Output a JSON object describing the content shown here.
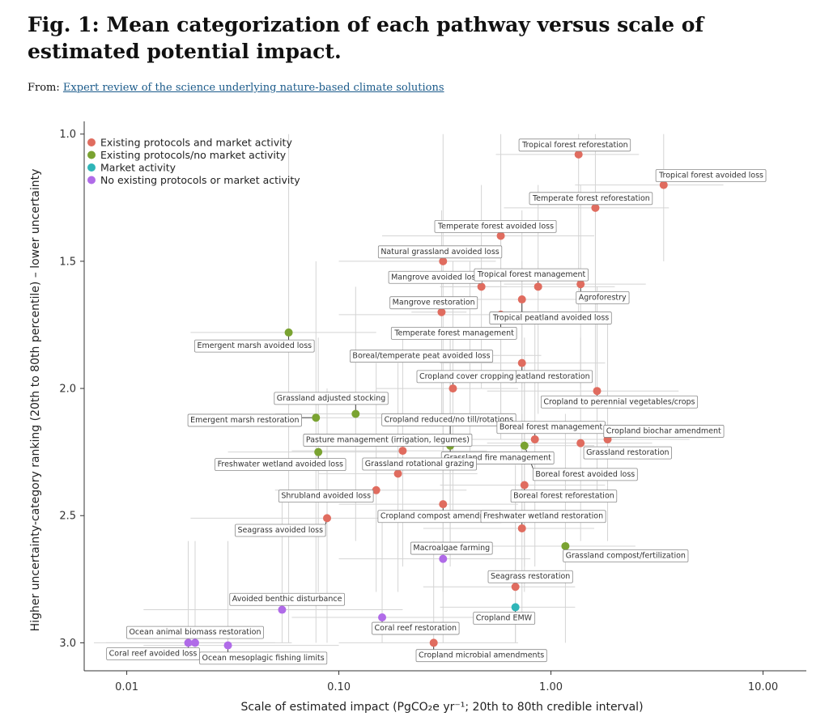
{
  "header": {
    "title": "Fig. 1: Mean categorization of each pathway versus scale of estimated potential impact.",
    "from_label": "From:",
    "from_link": "Expert review of the science underlying nature-based climate solutions"
  },
  "chart_data": {
    "type": "scatter",
    "x_scale": "log",
    "y_inverted": true,
    "xlim": [
      0.0063,
      16
    ],
    "ylim": [
      0.95,
      3.11
    ],
    "x_ticks": [
      0.01,
      0.1,
      1,
      10
    ],
    "x_tick_labels": [
      "0.01",
      "0.10",
      "1.00",
      "10.00"
    ],
    "y_ticks": [
      1.0,
      1.5,
      2.0,
      2.5,
      3.0
    ],
    "y_tick_labels": [
      "1.0",
      "1.5",
      "2.0",
      "2.5",
      "3.0"
    ],
    "xlabel": "Scale of estimated impact (PgCO₂e yr⁻¹; 20th to 80th credible interval)",
    "ylabel": "Higher uncertainty-category ranking (20th to 80th percentile) – lower uncertainty",
    "grid": false,
    "legend_position": "top-left",
    "categories": [
      {
        "key": "existing",
        "name": "Existing protocols and market activity",
        "color": "#e06c5f"
      },
      {
        "key": "protocols",
        "name": "Existing protocols/no market activity",
        "color": "#7aa331"
      },
      {
        "key": "market",
        "name": "Market activity",
        "color": "#2fb5b8"
      },
      {
        "key": "none",
        "name": "No existing protocols or market activity",
        "color": "#b06be8"
      }
    ],
    "points": [
      {
        "label": "Tropical forest reforestation",
        "x": 1.35,
        "y": 1.08,
        "cat": "existing",
        "xr": [
          0.55,
          2.6
        ],
        "yr": [
          1.0,
          1.7
        ],
        "lp": [
          1.3,
          1.04
        ]
      },
      {
        "label": "Tropical forest avoided loss",
        "x": 3.4,
        "y": 1.2,
        "cat": "existing",
        "xr": [
          1.3,
          6.5
        ],
        "yr": [
          1.0,
          1.5
        ],
        "lp": [
          5.7,
          1.16
        ]
      },
      {
        "label": "Temperate forest reforestation",
        "x": 1.62,
        "y": 1.29,
        "cat": "existing",
        "xr": [
          0.6,
          3.6
        ],
        "yr": [
          1.0,
          2.0
        ],
        "lp": [
          1.55,
          1.25
        ]
      },
      {
        "label": "Temperate forest avoided loss",
        "x": 0.58,
        "y": 1.4,
        "cat": "existing",
        "xr": [
          0.16,
          1.6
        ],
        "yr": [
          1.0,
          2.2
        ],
        "lp": [
          0.55,
          1.36
        ]
      },
      {
        "label": "Natural grassland avoided loss",
        "x": 0.31,
        "y": 1.5,
        "cat": "existing",
        "xr": [
          0.1,
          0.55
        ],
        "yr": [
          1.0,
          2.5
        ],
        "lp": [
          0.3,
          1.46
        ]
      },
      {
        "label": "Mangrove avoided loss",
        "x": 0.47,
        "y": 1.6,
        "cat": "existing",
        "xr": [
          0.3,
          0.62
        ],
        "yr": [
          1.2,
          2.0
        ],
        "lp": [
          0.285,
          1.56
        ]
      },
      {
        "label": "Tropical forest management",
        "x": 0.87,
        "y": 1.6,
        "cat": "existing",
        "xr": [
          0.3,
          2.0
        ],
        "yr": [
          1.2,
          2.1
        ],
        "lp": [
          0.81,
          1.55
        ]
      },
      {
        "label": "Agroforestry",
        "x": 1.38,
        "y": 1.59,
        "cat": "existing",
        "xr": [
          0.6,
          2.8
        ],
        "yr": [
          1.2,
          2.0
        ],
        "lp": [
          1.75,
          1.64
        ]
      },
      {
        "label": "Mangrove restoration",
        "x": 0.305,
        "y": 1.7,
        "cat": "existing",
        "xr": [
          0.22,
          0.4
        ],
        "yr": [
          1.3,
          2.1
        ],
        "lp": [
          0.28,
          1.66
        ]
      },
      {
        "label": "Tropical peatland avoided loss",
        "x": 0.73,
        "y": 1.65,
        "cat": "existing",
        "xr": [
          0.4,
          1.4
        ],
        "yr": [
          1.3,
          2.0
        ],
        "lp": [
          1.0,
          1.72
        ]
      },
      {
        "label": "Temperate forest management",
        "x": 0.58,
        "y": 1.71,
        "cat": "existing",
        "xr": [
          0.1,
          1.0
        ],
        "yr": [
          1.3,
          2.2
        ],
        "lp": [
          0.35,
          1.78
        ]
      },
      {
        "label": "Emergent marsh avoided loss",
        "x": 0.058,
        "y": 1.78,
        "cat": "protocols",
        "xr": [
          0.02,
          0.15
        ],
        "yr": [
          1.0,
          3.0
        ],
        "lp": [
          0.04,
          1.83
        ]
      },
      {
        "label": "Boreal/temperate peat avoided loss",
        "x": 0.415,
        "y": 1.87,
        "cat": "none",
        "xr": [
          0.2,
          0.9
        ],
        "yr": [
          1.5,
          2.3
        ],
        "lp": [
          0.245,
          1.87
        ]
      },
      {
        "label": "Peatland restoration",
        "x": 0.73,
        "y": 1.9,
        "cat": "existing",
        "xr": [
          0.3,
          1.8
        ],
        "yr": [
          1.5,
          2.5
        ],
        "lp": [
          1.0,
          1.95
        ]
      },
      {
        "label": "Cropland cover cropping",
        "x": 0.345,
        "y": 2.0,
        "cat": "existing",
        "xr": [
          0.15,
          0.7
        ],
        "yr": [
          1.5,
          2.5
        ],
        "lp": [
          0.4,
          1.95
        ]
      },
      {
        "label": "Cropland to perennial vegetables/crops",
        "x": 1.65,
        "y": 2.01,
        "cat": "existing",
        "xr": [
          0.5,
          4.0
        ],
        "yr": [
          1.6,
          2.4
        ],
        "lp": [
          2.1,
          2.05
        ]
      },
      {
        "label": "Grassland adjusted stocking",
        "x": 0.12,
        "y": 2.1,
        "cat": "protocols",
        "xr": [
          0.05,
          0.3
        ],
        "yr": [
          1.6,
          2.6
        ],
        "lp": [
          0.092,
          2.036
        ]
      },
      {
        "label": "Emergent marsh restoration",
        "x": 0.078,
        "y": 2.115,
        "cat": "protocols",
        "xr": [
          0.03,
          0.2
        ],
        "yr": [
          1.5,
          3.0
        ],
        "lp": [
          0.036,
          2.122
        ]
      },
      {
        "label": "Cropland reduced/no till/rotations",
        "x": 0.335,
        "y": 2.2,
        "cat": "existing",
        "xr": [
          0.12,
          0.9
        ],
        "yr": [
          1.8,
          2.6
        ],
        "lp": [
          0.33,
          2.12
        ]
      },
      {
        "label": "Boreal forest management",
        "x": 0.84,
        "y": 2.2,
        "cat": "existing",
        "xr": [
          0.3,
          2.2
        ],
        "yr": [
          1.7,
          2.7
        ],
        "lp": [
          1.0,
          2.15
        ]
      },
      {
        "label": "Cropland biochar amendment",
        "x": 1.85,
        "y": 2.2,
        "cat": "existing",
        "xr": [
          0.6,
          4.5
        ],
        "yr": [
          1.7,
          2.6
        ],
        "lp": [
          3.4,
          2.165
        ]
      },
      {
        "label": "Pasture management (irrigation, legumes)",
        "x": 0.2,
        "y": 2.245,
        "cat": "existing",
        "xr": [
          0.06,
          0.5
        ],
        "yr": [
          1.8,
          2.7
        ],
        "lp": [
          0.17,
          2.2
        ]
      },
      {
        "label": "Grassland restoration",
        "x": 1.38,
        "y": 2.215,
        "cat": "existing",
        "xr": [
          0.5,
          3.0
        ],
        "yr": [
          1.8,
          2.6
        ],
        "lp": [
          2.3,
          2.25
        ]
      },
      {
        "label": "Grassland fire management",
        "x": 0.335,
        "y": 2.225,
        "cat": "protocols",
        "xr": [
          0.15,
          0.75
        ],
        "yr": [
          1.8,
          2.7
        ],
        "lp": [
          0.56,
          2.27
        ]
      },
      {
        "label": "Freshwater wetland avoided loss",
        "x": 0.08,
        "y": 2.25,
        "cat": "protocols",
        "xr": [
          0.03,
          0.2
        ],
        "yr": [
          1.8,
          2.8
        ],
        "lp": [
          0.053,
          2.296
        ]
      },
      {
        "label": "Grassland rotational grazing",
        "x": 0.19,
        "y": 2.335,
        "cat": "existing",
        "xr": [
          0.08,
          0.45
        ],
        "yr": [
          1.9,
          2.8
        ],
        "lp": [
          0.24,
          2.294
        ]
      },
      {
        "label": "Boreal forest avoided loss",
        "x": 0.75,
        "y": 2.225,
        "cat": "protocols",
        "xr": [
          0.3,
          1.6
        ],
        "yr": [
          1.8,
          2.7
        ],
        "lp": [
          1.45,
          2.335
        ]
      },
      {
        "label": "Shrubland avoided loss",
        "x": 0.15,
        "y": 2.4,
        "cat": "existing",
        "xr": [
          0.05,
          0.4
        ],
        "yr": [
          1.9,
          2.8
        ],
        "lp": [
          0.087,
          2.42
        ]
      },
      {
        "label": "Boreal forest reforestation",
        "x": 0.75,
        "y": 2.38,
        "cat": "existing",
        "xr": [
          0.3,
          1.8
        ],
        "yr": [
          1.9,
          2.8
        ],
        "lp": [
          1.15,
          2.42
        ]
      },
      {
        "label": "Cropland compost amendment",
        "x": 0.31,
        "y": 2.455,
        "cat": "existing",
        "xr": [
          0.1,
          0.7
        ],
        "yr": [
          2.0,
          2.8
        ],
        "lp": [
          0.3,
          2.5
        ]
      },
      {
        "label": "Freshwater wetland restoration",
        "x": 0.73,
        "y": 2.55,
        "cat": "existing",
        "xr": [
          0.25,
          1.6
        ],
        "yr": [
          2.1,
          2.9
        ],
        "lp": [
          0.92,
          2.5
        ]
      },
      {
        "label": "Seagrass avoided loss",
        "x": 0.088,
        "y": 2.51,
        "cat": "existing",
        "xr": [
          0.02,
          0.3
        ],
        "yr": [
          2.0,
          3.0
        ],
        "lp": [
          0.053,
          2.555
        ]
      },
      {
        "label": "Grassland compost/fertilization",
        "x": 1.17,
        "y": 2.62,
        "cat": "protocols",
        "xr": [
          0.4,
          2.5
        ],
        "yr": [
          2.1,
          3.0
        ],
        "lp": [
          2.25,
          2.655
        ]
      },
      {
        "label": "Macroalgae farming",
        "x": 0.31,
        "y": 2.67,
        "cat": "none",
        "xr": [
          0.1,
          0.8
        ],
        "yr": [
          2.2,
          3.0
        ],
        "lp": [
          0.34,
          2.625
        ]
      },
      {
        "label": "Seagrass restoration",
        "x": 0.68,
        "y": 2.78,
        "cat": "existing",
        "xr": [
          0.25,
          1.3
        ],
        "yr": [
          2.3,
          3.0
        ],
        "lp": [
          0.8,
          2.737
        ]
      },
      {
        "label": "Avoided benthic disturbance",
        "x": 0.054,
        "y": 2.87,
        "cat": "none",
        "xr": [
          0.012,
          0.2
        ],
        "yr": [
          2.4,
          3.0
        ],
        "lp": [
          0.057,
          2.826
        ]
      },
      {
        "label": "Cropland EMW",
        "x": 0.68,
        "y": 2.86,
        "cat": "market",
        "xr": [
          0.3,
          1.3
        ],
        "yr": [
          2.4,
          3.0
        ],
        "lp": [
          0.6,
          2.9
        ]
      },
      {
        "label": "Coral reef restoration",
        "x": 0.16,
        "y": 2.9,
        "cat": "none",
        "xr": [
          0.06,
          0.45
        ],
        "yr": [
          2.5,
          3.0
        ],
        "lp": [
          0.23,
          2.94
        ]
      },
      {
        "label": "Ocean animal biomass restoration",
        "x": 0.021,
        "y": 3.0,
        "cat": "none",
        "xr": [
          0.008,
          0.06
        ],
        "yr": [
          2.6,
          3.05
        ],
        "lp": [
          0.021,
          2.956
        ]
      },
      {
        "label": "Coral reef avoided loss",
        "x": 0.0195,
        "y": 3.0,
        "cat": "none",
        "xr": [
          0.007,
          0.05
        ],
        "yr": [
          2.6,
          3.05
        ],
        "lp": [
          0.0133,
          3.04
        ]
      },
      {
        "label": "Ocean mesoplagic fishing limits",
        "x": 0.03,
        "y": 3.01,
        "cat": "none",
        "xr": [
          0.012,
          0.1
        ],
        "yr": [
          2.6,
          3.05
        ],
        "lp": [
          0.044,
          3.057
        ]
      },
      {
        "label": "Cropland microbial amendments",
        "x": 0.28,
        "y": 3.0,
        "cat": "existing",
        "xr": [
          0.1,
          0.7
        ],
        "yr": [
          2.6,
          3.05
        ],
        "lp": [
          0.47,
          3.047
        ]
      }
    ]
  }
}
